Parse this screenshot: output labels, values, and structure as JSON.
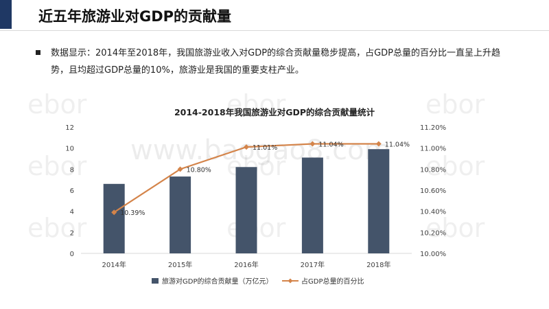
{
  "page": {
    "title": "近五年旅游业对GDP的贡献量",
    "bullet": "数据显示：2014年至2018年，我国旅游业收入对GDP的综合贡献量稳步提高，占GDP总量的百分比一直呈上升趋势，且均超过GDP总量的10%，旅游业是我国的重要支柱产业。",
    "watermark_text": "www.baogao8.com",
    "watermark_logo": "ebor"
  },
  "colors": {
    "accent": "#1f3864",
    "bar": "#44546a",
    "line": "#d4844a",
    "axis_text": "#404040",
    "grid": "#d9d9d9"
  },
  "chart_data": {
    "type": "bar",
    "title": "2014-2018年我国旅游业对GDP的综合贡献量统计",
    "categories": [
      "2014年",
      "2015年",
      "2016年",
      "2017年",
      "2018年"
    ],
    "series": [
      {
        "name": "旅游对GDP的综合贡献量（万亿元）",
        "type": "bar",
        "axis": "left",
        "values": [
          6.6,
          7.3,
          8.2,
          9.1,
          9.9
        ]
      },
      {
        "name": "占GDP总量的百分比",
        "type": "line",
        "axis": "right",
        "values": [
          10.39,
          10.8,
          11.01,
          11.04,
          11.04
        ],
        "labels": [
          "10.39%",
          "10.80%",
          "11.01%",
          "11.04%",
          "11.04%"
        ]
      }
    ],
    "ylim_left": [
      0,
      12
    ],
    "yticks_left": [
      "0",
      "2",
      "4",
      "6",
      "8",
      "10",
      "12"
    ],
    "ylim_right": [
      10.0,
      11.2
    ],
    "yticks_right": [
      "10.00%",
      "10.20%",
      "10.40%",
      "10.60%",
      "10.80%",
      "11.00%",
      "11.20%"
    ],
    "legend_position": "bottom"
  }
}
